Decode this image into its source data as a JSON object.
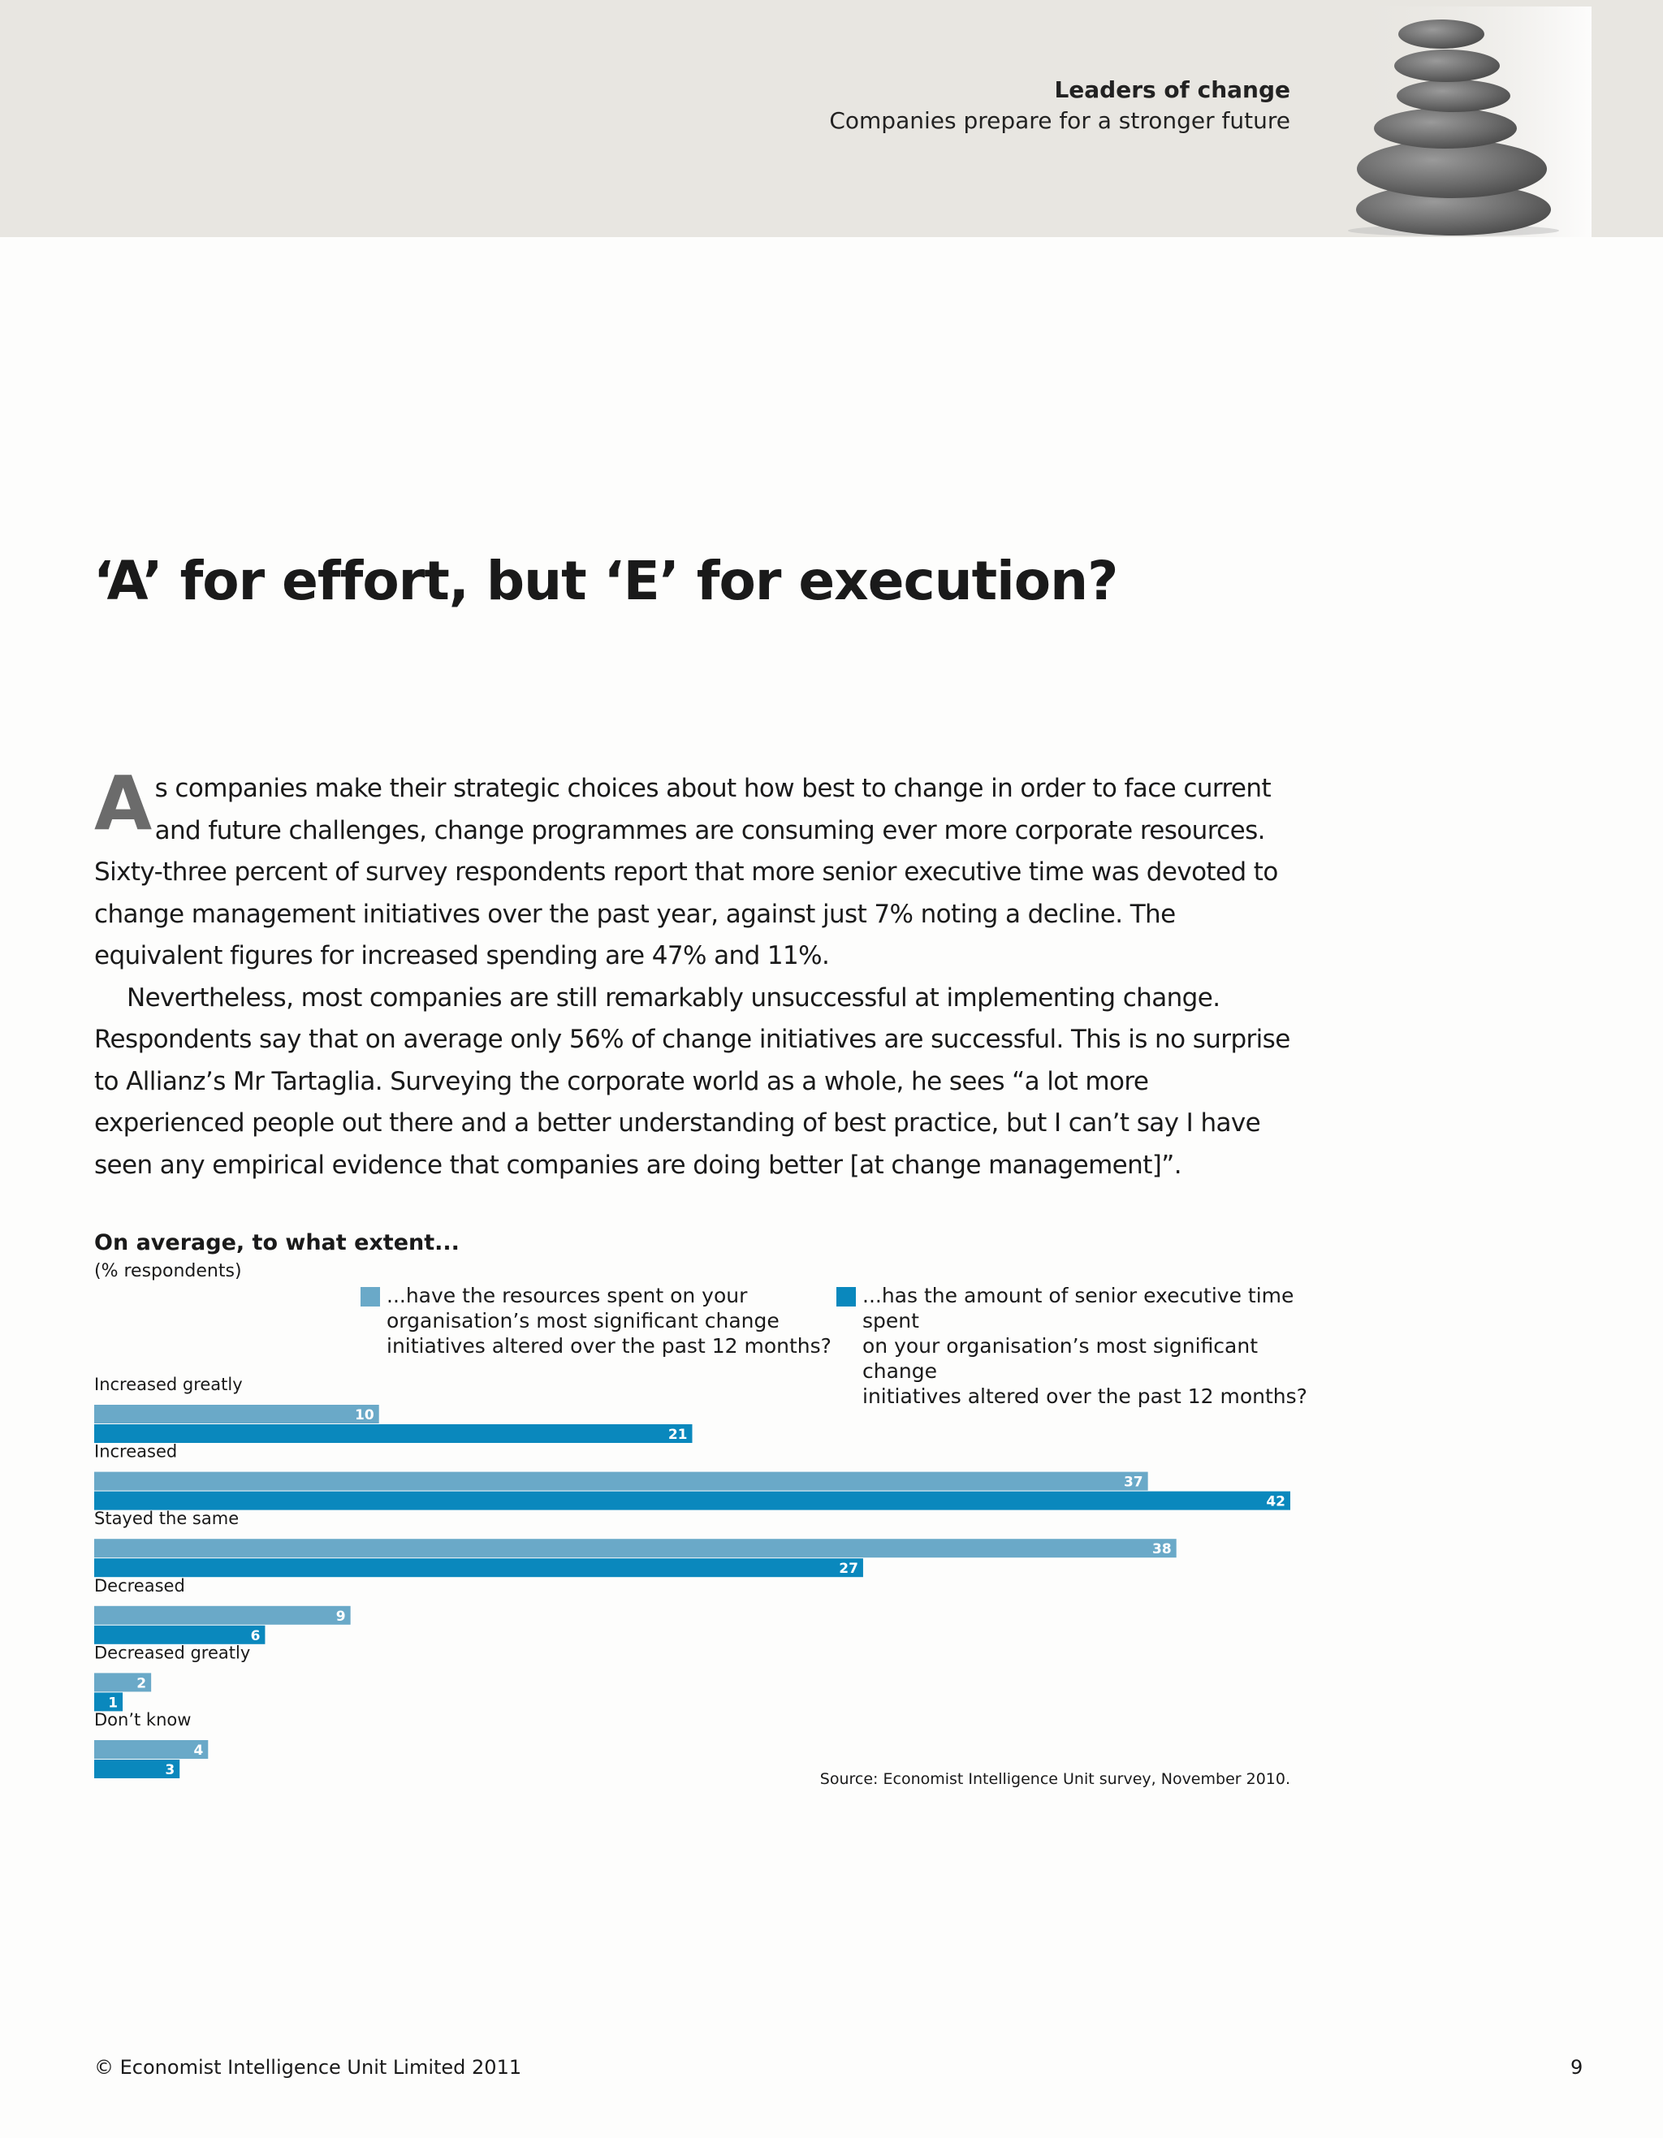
{
  "header": {
    "title": "Leaders of change",
    "subtitle": "Companies prepare for a stronger future"
  },
  "headline": "‘A’ for effort, but ‘E’ for execution?",
  "body": {
    "dropcap": "A",
    "para1_rest": "s companies make their strategic choices about how best to change in order to face current and future challenges, change programmes are consuming ever more corporate resources. Sixty-three percent of survey respondents report that more senior executive time was devoted to change management initiatives over the past year, against just 7% noting a decline. The equivalent figures for increased spending are 47% and 11%.",
    "para2": "Nevertheless, most companies are still remarkably unsuccessful at implementing change. Respondents say that on average only 56% of change initiatives are successful. This is no surprise to Allianz’s Mr Tartaglia. Surveying the corporate world as a whole, he sees “a lot more experienced people out there and a better understanding of best practice, but I can’t say I have seen any empirical evidence that companies are doing better [at change management]”."
  },
  "chart_data": {
    "type": "bar",
    "orientation": "horizontal",
    "title": "On average, to what extent...",
    "subtitle": "(% respondents)",
    "categories": [
      "Increased greatly",
      "Increased",
      "Stayed the same",
      "Decreased",
      "Decreased greatly",
      "Don’t know"
    ],
    "series": [
      {
        "name": "...have the resources spent on your\norganisation’s most significant change\ninitiatives altered over the past 12 months?",
        "color": "#6aa9c8",
        "values": [
          10,
          37,
          38,
          9,
          2,
          4
        ]
      },
      {
        "name": "...has the amount of senior executive time spent\non your organisation’s most significant change\ninitiatives altered over the past 12 months?",
        "color": "#0a88bd",
        "values": [
          21,
          42,
          27,
          6,
          1,
          3
        ]
      }
    ],
    "xlim": [
      0,
      42
    ],
    "grid": false,
    "legend": "top",
    "data_labels": true,
    "source": "Source: Economist Intelligence Unit survey, November 2010."
  },
  "footer": {
    "copyright": "© Economist Intelligence Unit Limited 2011",
    "page_number": "9"
  }
}
